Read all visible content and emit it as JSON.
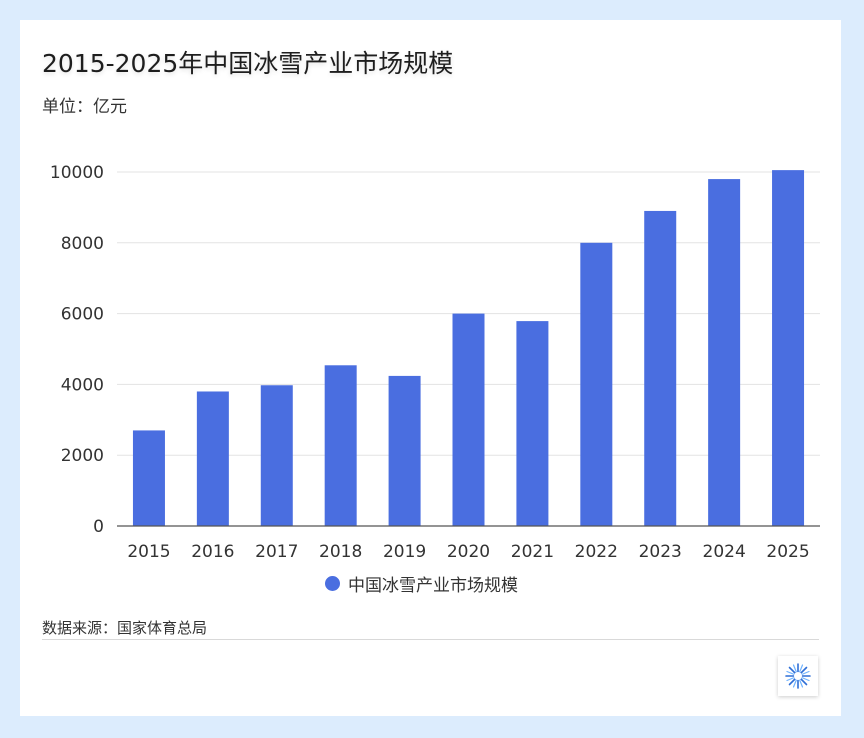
{
  "header": {
    "title": "2015-2025年中国冰雪产业市场规模",
    "unit": "单位：亿元"
  },
  "legend": {
    "label": "中国冰雪产业市场规模"
  },
  "footer": {
    "source": "数据来源：国家体育总局"
  },
  "colors": {
    "bar": "#4a6ee0",
    "page_background": "#dcecfd",
    "card_background": "#ffffff",
    "gridline": "#e3e3e3"
  },
  "chart_data": {
    "type": "bar",
    "title": "2015-2025年中国冰雪产业市场规模",
    "subtitle": "单位：亿元",
    "categories": [
      "2015",
      "2016",
      "2017",
      "2018",
      "2019",
      "2020",
      "2021",
      "2022",
      "2023",
      "2024",
      "2025"
    ],
    "series": [
      {
        "name": "中国冰雪产业市场规模",
        "values": [
          2700,
          3800,
          3976,
          4540,
          4240,
          6000,
          5788,
          8000,
          8900,
          9800,
          10053
        ]
      }
    ],
    "yticks": [
      0,
      2000,
      4000,
      6000,
      8000,
      10000
    ],
    "ylim": [
      0,
      10000
    ],
    "xlabel": "",
    "ylabel": "",
    "grid": true,
    "legend_position": "bottom"
  }
}
